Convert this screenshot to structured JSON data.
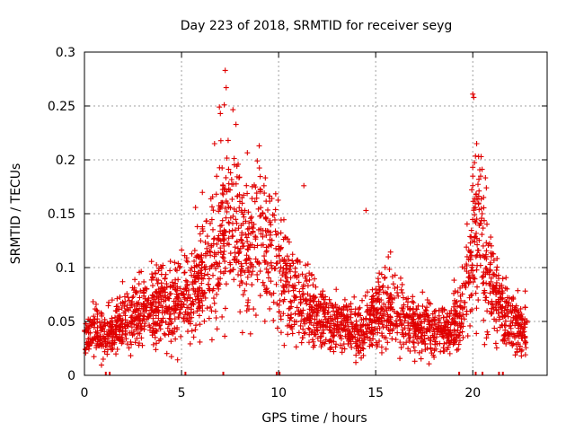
{
  "chart_data": {
    "type": "scatter",
    "title": "Day 223 of 2018, SRMTID for receiver seyg",
    "xlabel": "GPS time / hours",
    "ylabel": "SRMTID / TECUs",
    "xlim": [
      0,
      23.83
    ],
    "ylim": [
      0,
      0.3
    ],
    "x_ticks": [
      0,
      5,
      10,
      15,
      20
    ],
    "x_tick_labels": [
      "0",
      "5",
      "10",
      "15",
      "20"
    ],
    "y_ticks": [
      0,
      0.05,
      0.1,
      0.15,
      0.2,
      0.25,
      0.3
    ],
    "y_tick_labels": [
      "0",
      "0.05",
      "0.1",
      "0.15",
      "0.2",
      "0.25",
      "0.3"
    ],
    "grid": true,
    "marker": "plus",
    "color": "#e00000",
    "trend": {
      "x": [
        0,
        0.5,
        1,
        1.5,
        2,
        2.5,
        3,
        3.5,
        4,
        4.5,
        5,
        5.5,
        6,
        6.5,
        7,
        7.5,
        8,
        8.5,
        9,
        9.5,
        10,
        10.5,
        11,
        11.5,
        12,
        12.5,
        13,
        13.5,
        14,
        14.5,
        15,
        15.5,
        16,
        16.5,
        17,
        17.5,
        18,
        18.5,
        19,
        19.5,
        19.8,
        20,
        20.3,
        20.6,
        20.9,
        21.2,
        21.5,
        22,
        22.5,
        22.8
      ],
      "y": [
        0.035,
        0.04,
        0.035,
        0.04,
        0.05,
        0.055,
        0.06,
        0.065,
        0.065,
        0.06,
        0.07,
        0.075,
        0.085,
        0.1,
        0.13,
        0.15,
        0.125,
        0.115,
        0.14,
        0.12,
        0.1,
        0.085,
        0.07,
        0.06,
        0.055,
        0.05,
        0.045,
        0.045,
        0.04,
        0.045,
        0.055,
        0.07,
        0.06,
        0.05,
        0.045,
        0.045,
        0.04,
        0.04,
        0.045,
        0.06,
        0.09,
        0.13,
        0.14,
        0.11,
        0.09,
        0.07,
        0.06,
        0.05,
        0.045,
        0.04
      ]
    },
    "peak_points": [
      {
        "x": 7.25,
        "y": 0.283
      },
      {
        "x": 7.3,
        "y": 0.267
      },
      {
        "x": 6.95,
        "y": 0.249
      },
      {
        "x": 7.0,
        "y": 0.243
      },
      {
        "x": 7.2,
        "y": 0.251
      },
      {
        "x": 6.7,
        "y": 0.215
      },
      {
        "x": 7.4,
        "y": 0.218
      },
      {
        "x": 9.0,
        "y": 0.213
      },
      {
        "x": 8.9,
        "y": 0.199
      },
      {
        "x": 20.0,
        "y": 0.261
      },
      {
        "x": 20.05,
        "y": 0.258
      },
      {
        "x": 20.2,
        "y": 0.215
      },
      {
        "x": 20.3,
        "y": 0.203
      },
      {
        "x": 20.7,
        "y": 0.174
      },
      {
        "x": 11.3,
        "y": 0.176
      },
      {
        "x": 14.5,
        "y": 0.153
      }
    ],
    "gap_markers_x": [
      1.1,
      1.3,
      5.2,
      7.15,
      9.9,
      10.05,
      19.3,
      20.15,
      20.5,
      21.35,
      21.55
    ]
  }
}
